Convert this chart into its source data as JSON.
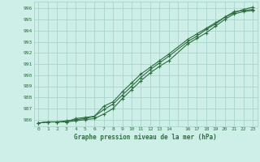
{
  "title": "Graphe pression niveau de la mer (hPa)",
  "bg_color": "#ceeee8",
  "grid_color": "#aad4cc",
  "line_color": "#2d6e3e",
  "xlim": [
    -0.5,
    23.5
  ],
  "ylim": [
    985.4,
    996.6
  ],
  "yticks": [
    986,
    987,
    988,
    989,
    990,
    991,
    992,
    993,
    994,
    995,
    996
  ],
  "xtick_labels": [
    "0",
    "1",
    "2",
    "3",
    "4",
    "5",
    "6",
    "7",
    "8",
    "9",
    "10",
    "11",
    "12",
    "13",
    "14",
    "",
    "16",
    "17",
    "18",
    "19",
    "20",
    "21",
    "22",
    "23"
  ],
  "xtick_pos": [
    0,
    1,
    2,
    3,
    4,
    5,
    6,
    7,
    8,
    9,
    10,
    11,
    12,
    13,
    14,
    15,
    16,
    17,
    18,
    19,
    20,
    21,
    22,
    23
  ],
  "series1_x": [
    0,
    1,
    2,
    3,
    4,
    5,
    6,
    7,
    8,
    9,
    10,
    11,
    12,
    13,
    14,
    16,
    17,
    18,
    19,
    20,
    21,
    22,
    23
  ],
  "series1_y": [
    985.7,
    985.8,
    985.8,
    985.8,
    986.1,
    986.2,
    986.3,
    986.9,
    987.4,
    988.2,
    989.0,
    989.8,
    990.5,
    991.1,
    991.7,
    993.0,
    993.5,
    994.1,
    994.6,
    995.2,
    995.7,
    995.8,
    995.9
  ],
  "series2_x": [
    0,
    1,
    2,
    3,
    4,
    5,
    6,
    7,
    8,
    9,
    10,
    11,
    12,
    13,
    14,
    16,
    17,
    18,
    19,
    20,
    21,
    22,
    23
  ],
  "series2_y": [
    985.7,
    985.8,
    985.8,
    985.9,
    986.0,
    986.1,
    986.3,
    987.2,
    987.6,
    988.5,
    989.3,
    990.1,
    990.7,
    991.3,
    991.9,
    993.2,
    993.7,
    994.2,
    994.7,
    995.2,
    995.6,
    995.9,
    996.1
  ],
  "series3_x": [
    0,
    1,
    2,
    3,
    4,
    5,
    6,
    7,
    8,
    9,
    10,
    11,
    12,
    13,
    14,
    16,
    17,
    18,
    19,
    20,
    21,
    22,
    23
  ],
  "series3_y": [
    985.7,
    985.8,
    985.8,
    985.8,
    985.9,
    986.0,
    986.1,
    986.5,
    987.0,
    987.9,
    988.7,
    989.5,
    990.2,
    990.8,
    991.3,
    992.8,
    993.3,
    993.8,
    994.4,
    995.0,
    995.5,
    995.7,
    995.8
  ]
}
